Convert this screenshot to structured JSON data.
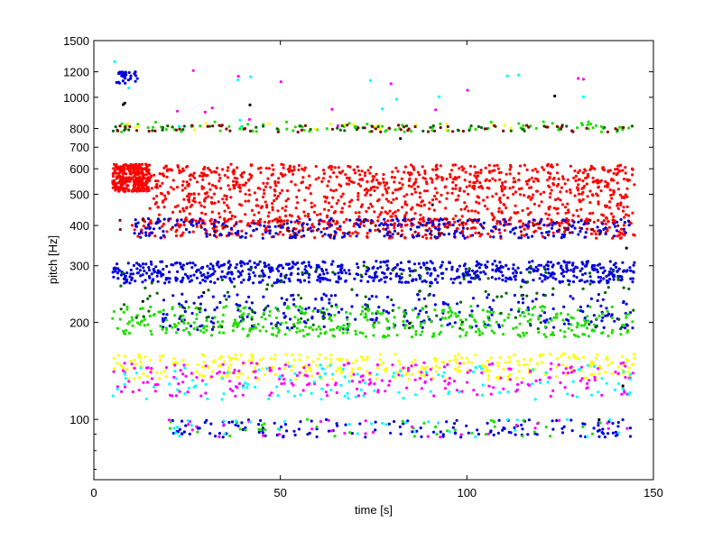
{
  "chart_data": {
    "type": "scatter",
    "title": "",
    "xlabel": "time [s]",
    "ylabel": "pitch [Hz]",
    "xlim": [
      0,
      150
    ],
    "ylim": [
      65,
      1500
    ],
    "yscale": "log",
    "grid": false,
    "legend": "none",
    "x_ticks": [
      0,
      50,
      100,
      150
    ],
    "x_tick_labels": [
      "0",
      "50",
      "100",
      "150"
    ],
    "y_ticks": [
      100,
      200,
      300,
      400,
      500,
      600,
      700,
      800,
      1000,
      1200,
      1500
    ],
    "y_tick_labels": [
      "100",
      "200",
      "300",
      "400",
      "500",
      "600",
      "700",
      "800",
      "1000",
      "1200",
      "1500"
    ],
    "data_time_range": [
      5,
      145
    ],
    "series": [
      {
        "color": "#ff0000",
        "bands": [
          {
            "x": [
              5,
              15
            ],
            "pitch": [
              510,
              620
            ],
            "points": 300
          },
          {
            "x": [
              15,
              145
            ],
            "pitch": [
              520,
              620
            ],
            "points": 520
          },
          {
            "x": [
              15,
              145
            ],
            "pitch": [
              400,
              520
            ],
            "points": 520
          },
          {
            "x": [
              10,
              145
            ],
            "pitch": [
              365,
              420
            ],
            "points": 300
          }
        ]
      },
      {
        "color": "#0000dd",
        "bands": [
          {
            "x": [
              5,
              145
            ],
            "pitch": [
              265,
              310
            ],
            "points": 700
          },
          {
            "x": [
              10,
              145
            ],
            "pitch": [
              365,
              420
            ],
            "points": 300
          },
          {
            "x": [
              18,
              145
            ],
            "pitch": [
              190,
              245
            ],
            "points": 260
          },
          {
            "x": [
              20,
              145
            ],
            "pitch": [
              88,
              100
            ],
            "points": 150
          },
          {
            "x": [
              6,
              12
            ],
            "pitch": [
              1100,
              1200
            ],
            "points": 30
          }
        ]
      },
      {
        "color": "#22dd00",
        "bands": [
          {
            "x": [
              5,
              145
            ],
            "pitch": [
              180,
              225
            ],
            "points": 420
          },
          {
            "x": [
              5,
              145
            ],
            "pitch": [
              780,
              840
            ],
            "points": 90
          },
          {
            "x": [
              20,
              145
            ],
            "pitch": [
              88,
              100
            ],
            "points": 40
          }
        ]
      },
      {
        "color": "#ffff00",
        "bands": [
          {
            "x": [
              5,
              145
            ],
            "pitch": [
              133,
              160
            ],
            "points": 330
          },
          {
            "x": [
              5,
              145
            ],
            "pitch": [
              790,
              830
            ],
            "points": 20
          }
        ]
      },
      {
        "color": "#ff00ff",
        "bands": [
          {
            "x": [
              5,
              145
            ],
            "pitch": [
              118,
              150
            ],
            "points": 220
          },
          {
            "x": [
              20,
              145
            ],
            "pitch": [
              88,
              100
            ],
            "points": 30
          },
          {
            "x": [
              5,
              145
            ],
            "pitch": [
              800,
              1250
            ],
            "points": 14
          }
        ]
      },
      {
        "color": "#00ffff",
        "bands": [
          {
            "x": [
              5,
              145
            ],
            "pitch": [
              115,
              148
            ],
            "points": 120
          },
          {
            "x": [
              20,
              145
            ],
            "pitch": [
              88,
              100
            ],
            "points": 30
          },
          {
            "x": [
              5,
              145
            ],
            "pitch": [
              800,
              1300
            ],
            "points": 14
          }
        ]
      },
      {
        "color": "#006600",
        "bands": [
          {
            "x": [
              5,
              145
            ],
            "pitch": [
              190,
              300
            ],
            "points": 120
          },
          {
            "x": [
              5,
              145
            ],
            "pitch": [
              785,
              820
            ],
            "points": 50
          }
        ]
      },
      {
        "color": "#880000",
        "bands": [
          {
            "x": [
              5,
              145
            ],
            "pitch": [
              780,
              820
            ],
            "points": 60
          },
          {
            "x": [
              5,
              145
            ],
            "pitch": [
              370,
              420
            ],
            "points": 60
          }
        ]
      },
      {
        "color": "#000000",
        "bands": [
          {
            "x": [
              5,
              145
            ],
            "pitch": [
              75,
              1200
            ],
            "points": 12
          }
        ]
      }
    ]
  }
}
